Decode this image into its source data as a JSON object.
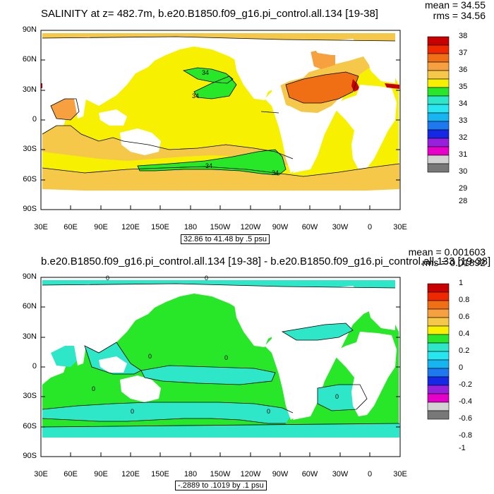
{
  "panel1": {
    "title": "SALINITY at z= 482.7m, b.e20.B1850.f09_g16.pi_control.all.134 [19-38]",
    "mean": "mean = 34.55",
    "rms": "rms = 34.56",
    "range": "32.86 to 41.48 by .5 psu",
    "contour_labels": [
      "34",
      "34",
      "34",
      "34"
    ],
    "colorbar_labels": [
      "38",
      "37",
      "36",
      "35",
      "34",
      "33",
      "32",
      "31",
      "30",
      "29",
      "28"
    ],
    "colorbar_colors": [
      "#c80000",
      "#f02800",
      "#f06e14",
      "#f7a040",
      "#f5c84a",
      "#f7f000",
      "#28e628",
      "#2ee6c8",
      "#28e6f0",
      "#16b4f0",
      "#1e78f0",
      "#1428e6",
      "#9620dc",
      "#e600c8",
      "#d2d2d2",
      "#787878"
    ]
  },
  "panel2": {
    "title": "b.e20.B1850.f09_g16.pi_control.all.134 [19-38] - b.e20.B1850.f09_g16.pi_control.all.133 [19-38]",
    "mean": "mean = 0.001603",
    "rms": "rms = 0.01892",
    "range": "-.2889 to .1019 by .1 psu",
    "contour_labels": [
      "0",
      "0",
      "0",
      "0",
      "0",
      "0",
      "0",
      "0"
    ],
    "colorbar_labels": [
      "1",
      "0.8",
      "0.6",
      "0.4",
      "0.2",
      "0",
      "-0.2",
      "-0.4",
      "-0.6",
      "-0.8",
      "-1"
    ],
    "colorbar_colors": [
      "#c80000",
      "#f02800",
      "#f06e14",
      "#f7a040",
      "#f5c84a",
      "#f7f000",
      "#28e628",
      "#2ee6c8",
      "#28e6f0",
      "#16b4f0",
      "#1e78f0",
      "#1428e6",
      "#9620dc",
      "#e600c8",
      "#d2d2d2",
      "#787878"
    ]
  },
  "axes": {
    "lat_labels": [
      "90N",
      "60N",
      "30N",
      "0",
      "30S",
      "60S",
      "90S"
    ],
    "lon_labels": [
      "30E",
      "60E",
      "90E",
      "120E",
      "150E",
      "180",
      "150W",
      "120W",
      "90W",
      "60W",
      "30W",
      "0",
      "30E"
    ]
  },
  "colors": {
    "p1_yellow": "#f7f000",
    "p1_orange_light": "#f5c84a",
    "p1_orange": "#f7a040",
    "p1_orange_dark": "#f06e14",
    "p1_green": "#28e628",
    "p1_red": "#c80000",
    "p2_cyan": "#2ee6c8",
    "p2_green": "#28e628"
  }
}
